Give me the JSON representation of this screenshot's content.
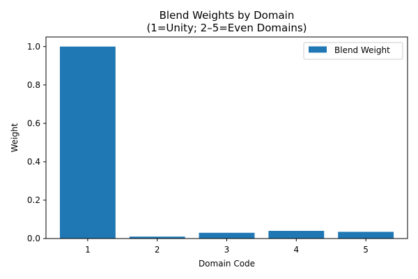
{
  "chart_data": {
    "type": "bar",
    "title_line1": "Blend Weights by Domain",
    "title_line2": "(1=Unity; 2–5=Even Domains)",
    "xlabel": "Domain Code",
    "ylabel": "Weight",
    "categories": [
      "1",
      "2",
      "3",
      "4",
      "5"
    ],
    "series": [
      {
        "name": "Blend Weight",
        "values": [
          1.0,
          0.01,
          0.03,
          0.04,
          0.035
        ]
      }
    ],
    "ylim": [
      0,
      1.05
    ],
    "yticks": [
      "0.0",
      "0.2",
      "0.4",
      "0.6",
      "0.8",
      "1.0"
    ],
    "bar_color": "#1f77b4",
    "grid": false,
    "legend_position": "top-right"
  }
}
